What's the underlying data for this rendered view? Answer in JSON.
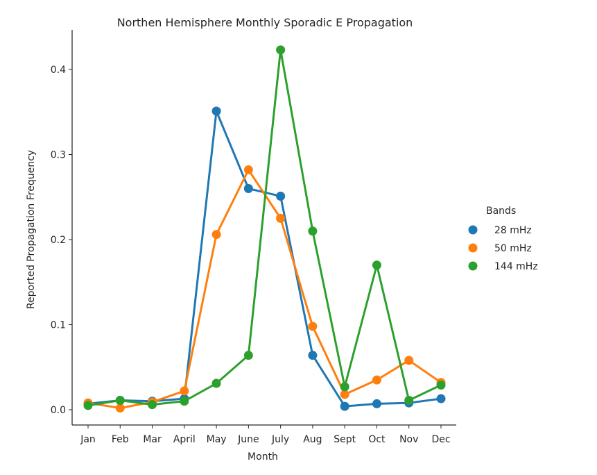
{
  "chart_data": {
    "type": "line",
    "title": "Northen Hemisphere Monthly Sporadic E Propagation",
    "xlabel": "Month",
    "ylabel": "Reported Propagation Frequency",
    "categories": [
      "Jan",
      "Feb",
      "Mar",
      "April",
      "May",
      "June",
      "July",
      "Aug",
      "Sept",
      "Oct",
      "Nov",
      "Dec"
    ],
    "yticks": [
      "0.0",
      "0.1",
      "0.2",
      "0.3",
      "0.4"
    ],
    "ylim": [
      -0.016,
      0.44
    ],
    "grid": false,
    "legend": {
      "title": "Bands",
      "placement": "right"
    },
    "series": [
      {
        "name": "28 mHz",
        "color": "#1f77b4",
        "values": [
          0.007,
          0.011,
          0.01,
          0.013,
          0.351,
          0.26,
          0.251,
          0.064,
          0.004,
          0.007,
          0.008,
          0.013
        ]
      },
      {
        "name": "50 mHz",
        "color": "#ff7f0e",
        "values": [
          0.008,
          0.002,
          0.009,
          0.022,
          0.206,
          0.282,
          0.225,
          0.098,
          0.018,
          0.035,
          0.058,
          0.032
        ]
      },
      {
        "name": "144 mHz",
        "color": "#2ca02c",
        "values": [
          0.005,
          0.011,
          0.006,
          0.01,
          0.031,
          0.064,
          0.423,
          0.21,
          0.027,
          0.17,
          0.011,
          0.029
        ]
      }
    ]
  }
}
